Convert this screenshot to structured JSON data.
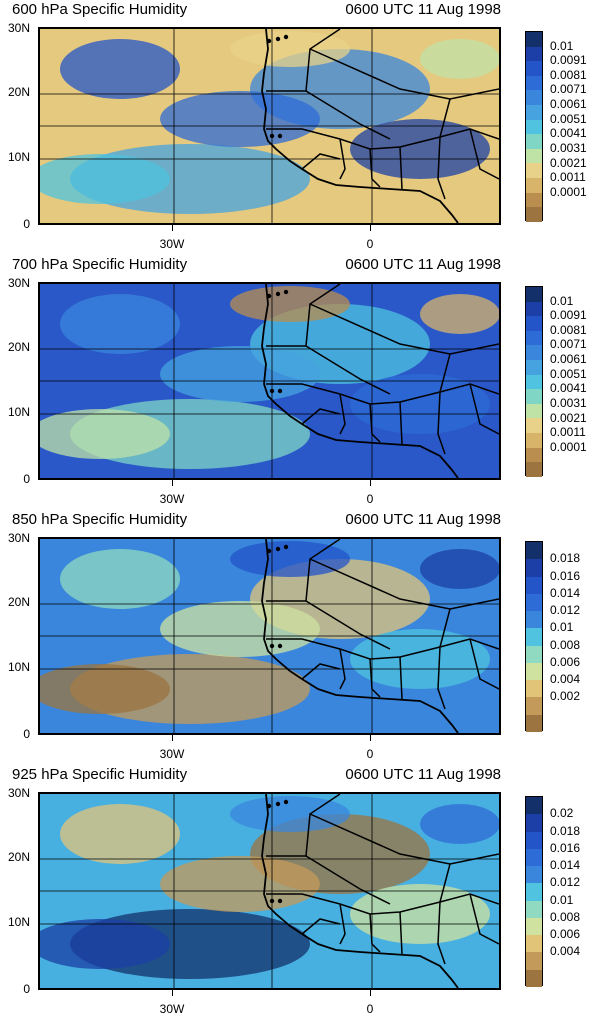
{
  "panels": [
    {
      "title": "600 hPa Specific Humidity",
      "time": "0600 UTC 11 Aug 1998",
      "lat_labels": [
        "30N",
        "20N",
        "10N",
        "0"
      ],
      "lon_labels": [
        "30W",
        "0"
      ],
      "colorbar_labels": [
        "0.01",
        "0.0091",
        "0.0081",
        "0.0071",
        "0.0061",
        "0.0051",
        "0.0041",
        "0.0031",
        "0.0021",
        "0.0011",
        "0.0001"
      ],
      "colors": [
        "#13306b",
        "#1b3fa6",
        "#2354c8",
        "#2d6bd6",
        "#3a86dc",
        "#46a3df",
        "#4fc3df",
        "#7fd6c4",
        "#bfe2a7",
        "#e8d28a",
        "#d8b46a",
        "#b98e4e",
        "#9b7440"
      ],
      "dominant": "#e5c97f"
    },
    {
      "title": "700 hPa Specific Humidity",
      "time": "0600 UTC 11 Aug 1998",
      "lat_labels": [
        "30N",
        "20N",
        "10N",
        "0"
      ],
      "lon_labels": [
        "30W",
        "0"
      ],
      "colorbar_labels": [
        "0.01",
        "0.0091",
        "0.0081",
        "0.0071",
        "0.0061",
        "0.0051",
        "0.0041",
        "0.0031",
        "0.0021",
        "0.0011",
        "0.0001"
      ],
      "colors": [
        "#13306b",
        "#1b3fa6",
        "#2354c8",
        "#2d6bd6",
        "#3a86dc",
        "#46a3df",
        "#4fc3df",
        "#7fd6c4",
        "#bfe2a7",
        "#e8d28a",
        "#d8b46a",
        "#b98e4e",
        "#9b7440"
      ],
      "dominant": "#2a58c9"
    },
    {
      "title": "850 hPa Specific Humidity",
      "time": "0600 UTC 11 Aug 1998",
      "lat_labels": [
        "30N",
        "20N",
        "10N",
        "0"
      ],
      "lon_labels": [
        "30W",
        "0"
      ],
      "colorbar_labels": [
        "0.018",
        "0.016",
        "0.014",
        "0.012",
        "0.01",
        "0.008",
        "0.006",
        "0.004",
        "0.002"
      ],
      "colors": [
        "#13306b",
        "#1b3fa6",
        "#2354c8",
        "#2d6bd6",
        "#3a86dc",
        "#4fc3df",
        "#8fdac0",
        "#cfe2a0",
        "#e2c479",
        "#c49a5a",
        "#9b7440"
      ],
      "dominant": "#3a86dc"
    },
    {
      "title": "925 hPa Specific Humidity",
      "time": "0600 UTC 11 Aug 1998",
      "lat_labels": [
        "30N",
        "20N",
        "10N",
        "0"
      ],
      "lon_labels": [
        "30W",
        "0"
      ],
      "colorbar_labels": [
        "0.02",
        "0.018",
        "0.016",
        "0.014",
        "0.012",
        "0.01",
        "0.008",
        "0.006",
        "0.004"
      ],
      "colors": [
        "#13306b",
        "#1b3fa6",
        "#2354c8",
        "#2d6bd6",
        "#3a86dc",
        "#4fc3df",
        "#8fdac0",
        "#cfe2a0",
        "#e2c479",
        "#c49a5a",
        "#9b7440"
      ],
      "dominant": "#48b0e0"
    }
  ]
}
